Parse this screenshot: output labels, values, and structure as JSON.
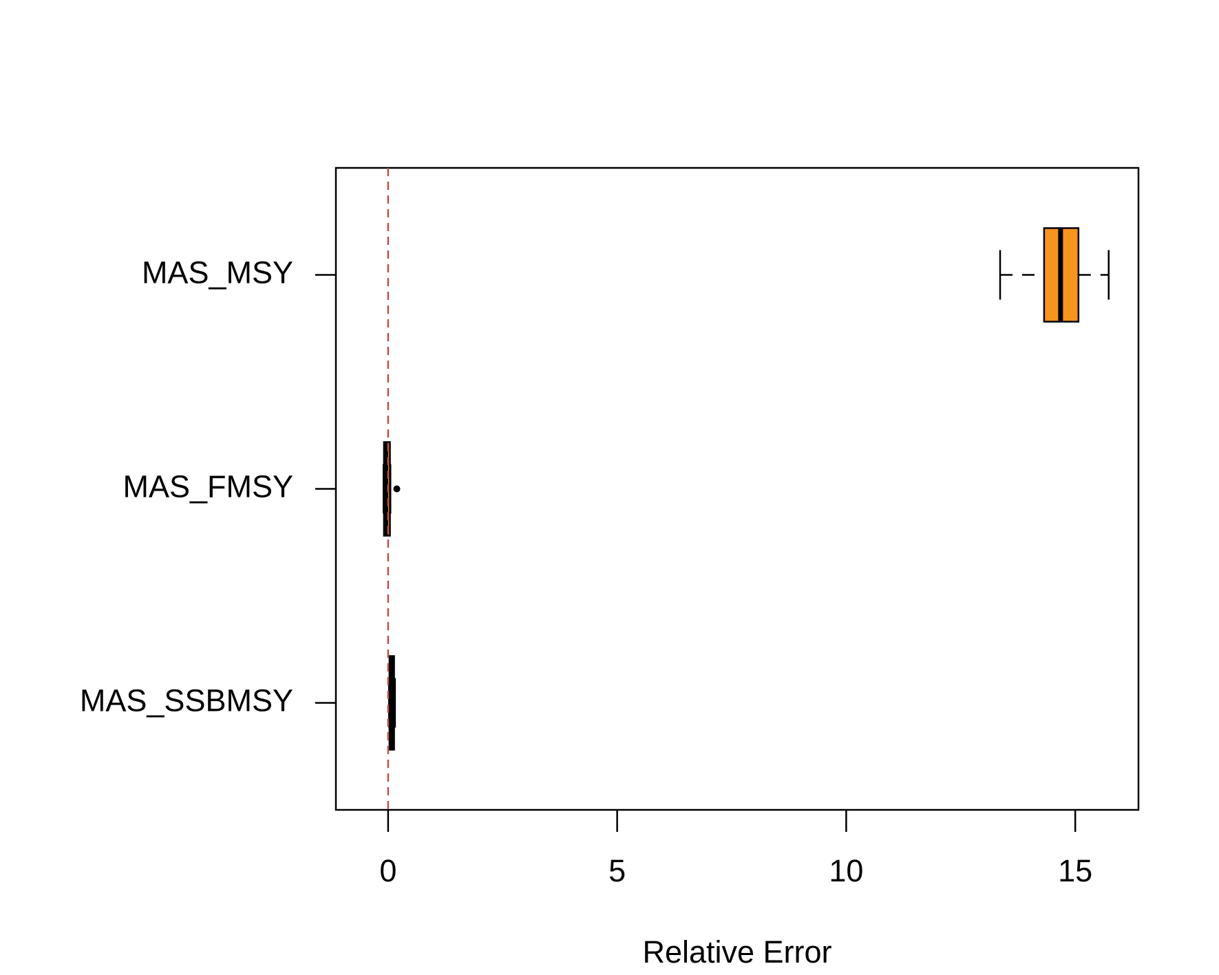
{
  "chart_data": {
    "type": "boxplot",
    "orientation": "horizontal",
    "categories": [
      "MAS_MSY",
      "MAS_FMSY",
      "MAS_SSBMSY"
    ],
    "boxes": [
      {
        "whisker_low": 13.36,
        "q1": 14.32,
        "median": 14.68,
        "q3": 15.07,
        "whisker_high": 15.73,
        "outliers": []
      },
      {
        "whisker_low": -0.1,
        "q1": -0.09,
        "median": -0.05,
        "q3": 0.04,
        "whisker_high": 0.05,
        "outliers": [
          0.19
        ]
      },
      {
        "whisker_low": 0.02,
        "q1": 0.03,
        "median": 0.08,
        "q3": 0.13,
        "whisker_high": 0.15,
        "outliers": []
      }
    ],
    "color": "#f7941d",
    "xlabel": "Relative Error",
    "xlim": [
      -1.14,
      16.38
    ],
    "xticks": [
      0,
      5,
      10,
      15
    ],
    "ref_line": 0,
    "ref_line_color": "#c0504d"
  }
}
